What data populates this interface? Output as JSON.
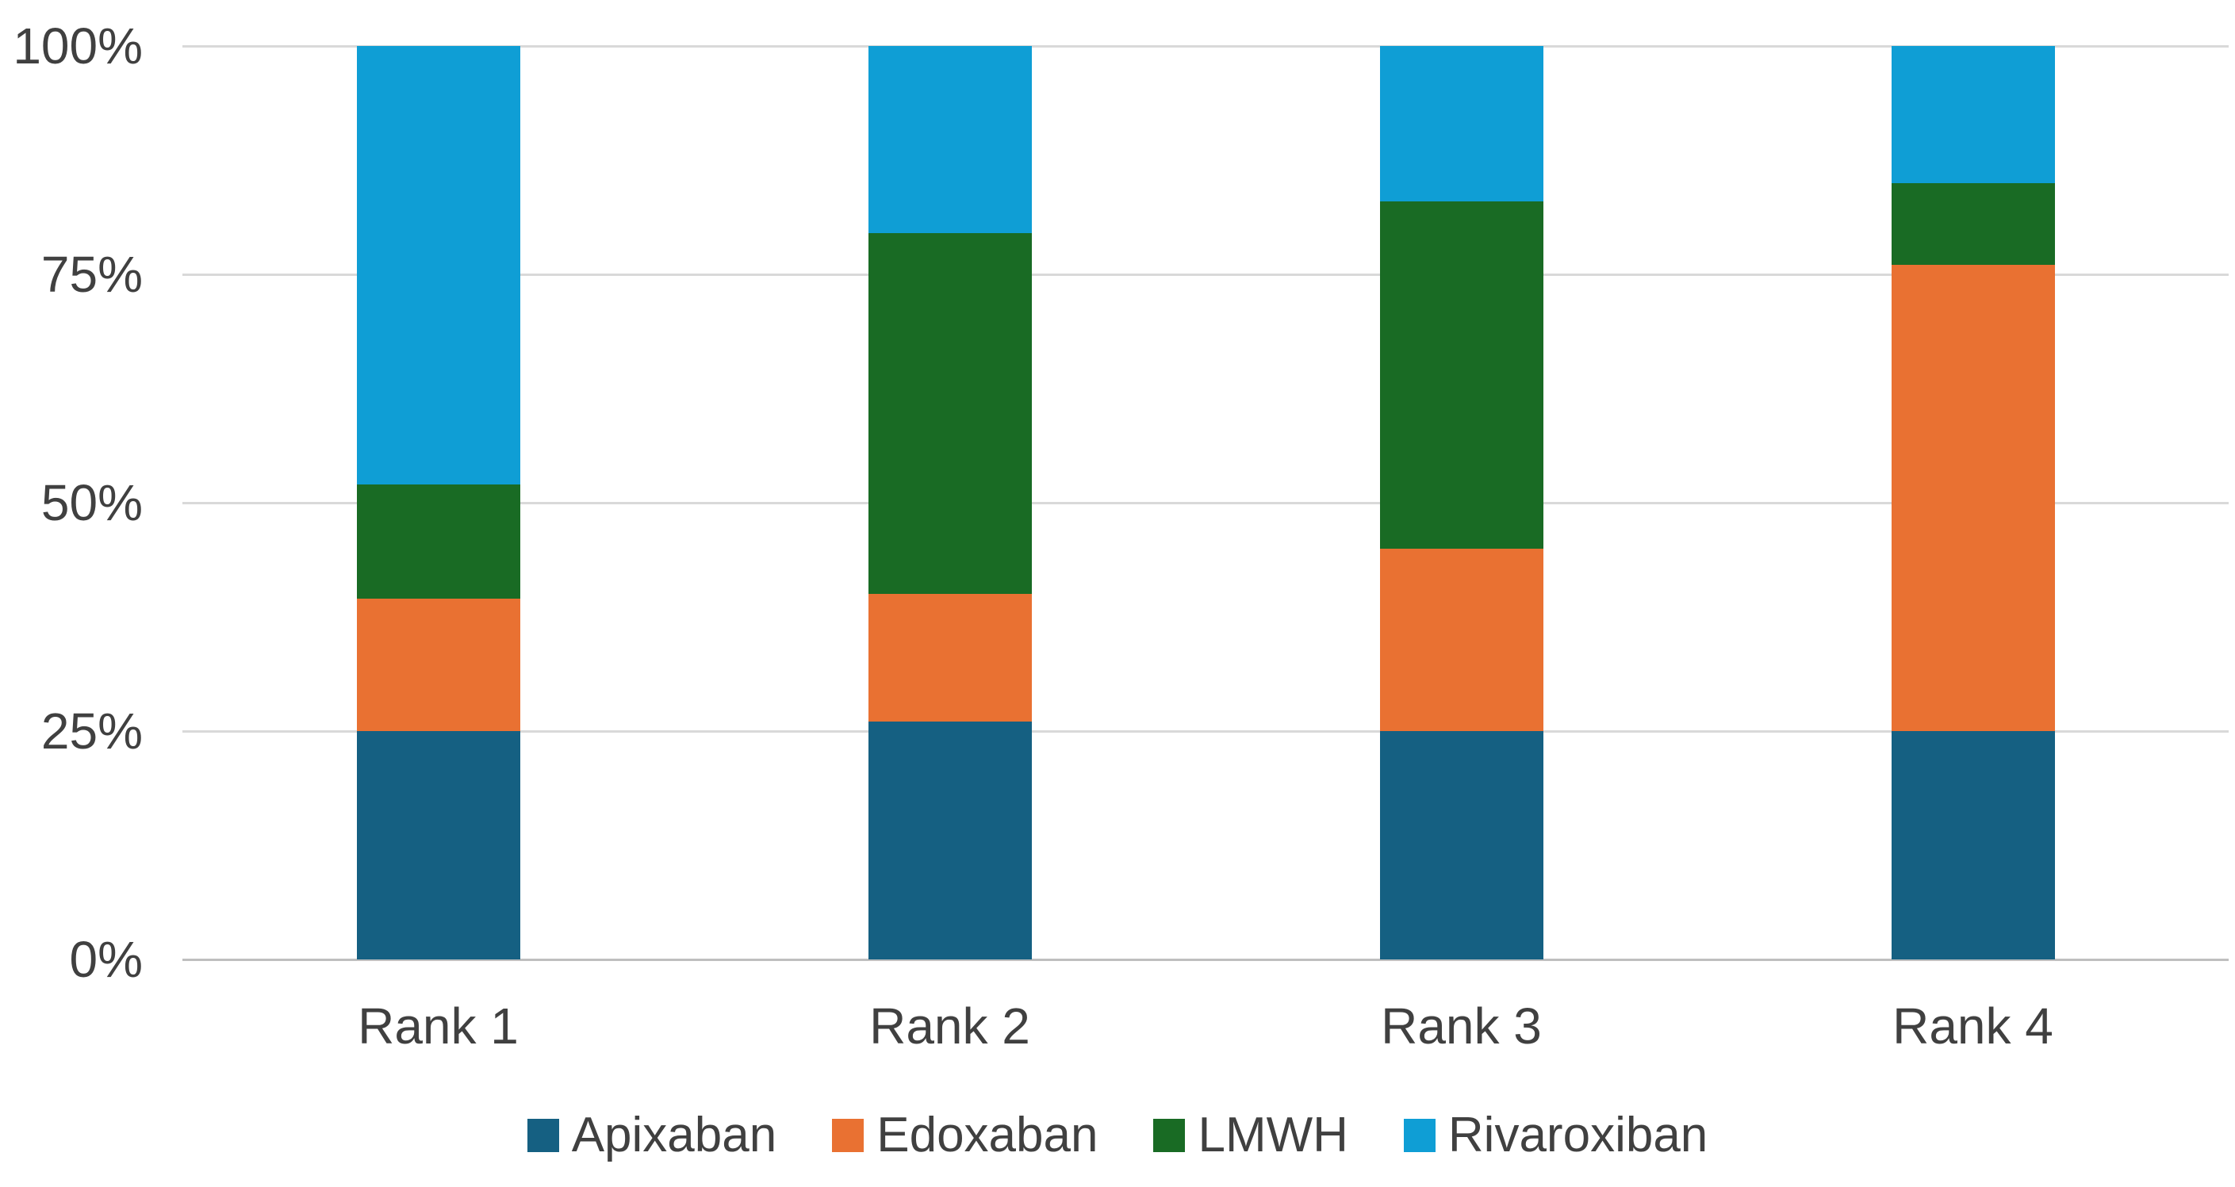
{
  "chart_data": {
    "type": "bar",
    "stacked": true,
    "stacked_100_percent": true,
    "title": "",
    "xlabel": "",
    "ylabel": "",
    "categories": [
      "Rank 1",
      "Rank 2",
      "Rank 3",
      "Rank 4"
    ],
    "series": [
      {
        "name": "Apixaban",
        "color": "#156082",
        "values": [
          25,
          26,
          25,
          25
        ]
      },
      {
        "name": "Edoxaban",
        "color": "#E97132",
        "values": [
          14.5,
          14,
          20,
          51
        ]
      },
      {
        "name": "LMWH",
        "color": "#196B24",
        "values": [
          12.5,
          39.5,
          38,
          9
        ]
      },
      {
        "name": "Rivaroxiban",
        "color": "#0F9ED5",
        "values": [
          48,
          20.5,
          17,
          15
        ]
      }
    ],
    "units": "percent of total per rank (100% stacked)",
    "y_axis": {
      "tick_labels": [
        "0%",
        "25%",
        "50%",
        "75%",
        "100%"
      ],
      "tick_values": [
        0,
        25,
        50,
        75,
        100
      ],
      "range": [
        0,
        100
      ]
    },
    "grid": true,
    "legend_position": "bottom"
  },
  "colors": {
    "background": "#FFFFFF",
    "gridline": "#D9D9D9",
    "axis_line": "#BFBFBF",
    "text": "#404040"
  }
}
